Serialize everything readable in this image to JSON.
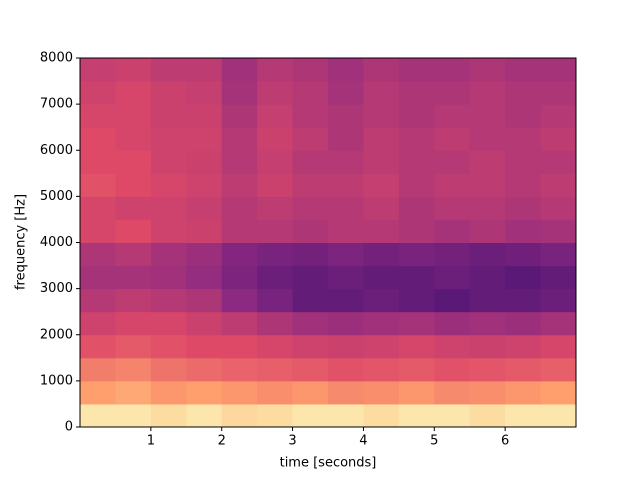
{
  "chart_data": {
    "type": "spectrogram",
    "xlabel": "time [seconds]",
    "ylabel": "frequency [Hz]",
    "xlim": [
      0,
      7
    ],
    "ylim": [
      0,
      8000
    ],
    "xticks": [
      1,
      2,
      3,
      4,
      5,
      6
    ],
    "yticks": [
      0,
      1000,
      2000,
      3000,
      4000,
      5000,
      6000,
      7000,
      8000
    ],
    "zlim": [
      0,
      1
    ],
    "colormap": [
      "#000004",
      "#3b0f70",
      "#8c2981",
      "#de4968",
      "#fe9f6d",
      "#fcfdbf"
    ],
    "z": [
      [
        0.95,
        0.95,
        0.93,
        0.95,
        0.92,
        0.93,
        0.95,
        0.95,
        0.93,
        0.95,
        0.95,
        0.93,
        0.95,
        0.95
      ],
      [
        0.8,
        0.82,
        0.78,
        0.8,
        0.78,
        0.76,
        0.78,
        0.75,
        0.76,
        0.78,
        0.75,
        0.76,
        0.78,
        0.8
      ],
      [
        0.72,
        0.74,
        0.7,
        0.68,
        0.66,
        0.65,
        0.64,
        0.62,
        0.63,
        0.64,
        0.62,
        0.63,
        0.64,
        0.65
      ],
      [
        0.62,
        0.64,
        0.62,
        0.6,
        0.6,
        0.58,
        0.56,
        0.55,
        0.56,
        0.58,
        0.56,
        0.55,
        0.56,
        0.58
      ],
      [
        0.56,
        0.58,
        0.58,
        0.55,
        0.52,
        0.48,
        0.45,
        0.44,
        0.45,
        0.46,
        0.44,
        0.45,
        0.44,
        0.46
      ],
      [
        0.5,
        0.52,
        0.5,
        0.48,
        0.4,
        0.35,
        0.3,
        0.3,
        0.32,
        0.3,
        0.28,
        0.3,
        0.3,
        0.32
      ],
      [
        0.46,
        0.46,
        0.45,
        0.42,
        0.36,
        0.32,
        0.3,
        0.32,
        0.3,
        0.3,
        0.32,
        0.3,
        0.28,
        0.3
      ],
      [
        0.48,
        0.5,
        0.46,
        0.44,
        0.38,
        0.35,
        0.34,
        0.36,
        0.34,
        0.35,
        0.34,
        0.32,
        0.33,
        0.35
      ],
      [
        0.58,
        0.6,
        0.56,
        0.55,
        0.5,
        0.5,
        0.48,
        0.5,
        0.5,
        0.48,
        0.46,
        0.48,
        0.45,
        0.46
      ],
      [
        0.58,
        0.56,
        0.56,
        0.54,
        0.5,
        0.52,
        0.5,
        0.5,
        0.52,
        0.48,
        0.5,
        0.5,
        0.48,
        0.5
      ],
      [
        0.62,
        0.6,
        0.58,
        0.56,
        0.52,
        0.55,
        0.52,
        0.52,
        0.54,
        0.5,
        0.52,
        0.52,
        0.5,
        0.52
      ],
      [
        0.6,
        0.6,
        0.56,
        0.55,
        0.5,
        0.54,
        0.5,
        0.5,
        0.52,
        0.5,
        0.5,
        0.52,
        0.5,
        0.5
      ],
      [
        0.6,
        0.58,
        0.56,
        0.56,
        0.5,
        0.55,
        0.52,
        0.48,
        0.52,
        0.5,
        0.52,
        0.5,
        0.5,
        0.52
      ],
      [
        0.58,
        0.58,
        0.55,
        0.55,
        0.48,
        0.54,
        0.5,
        0.48,
        0.5,
        0.48,
        0.5,
        0.5,
        0.48,
        0.5
      ],
      [
        0.56,
        0.58,
        0.55,
        0.54,
        0.46,
        0.52,
        0.5,
        0.46,
        0.5,
        0.48,
        0.48,
        0.5,
        0.48,
        0.48
      ],
      [
        0.54,
        0.55,
        0.52,
        0.52,
        0.45,
        0.5,
        0.48,
        0.45,
        0.48,
        0.46,
        0.46,
        0.48,
        0.46,
        0.46
      ]
    ]
  }
}
